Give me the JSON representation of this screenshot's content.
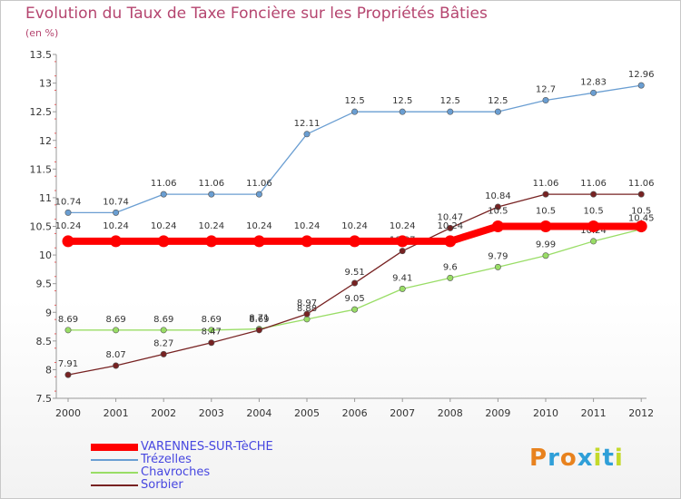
{
  "title": "Evolution du Taux de Taxe Foncière sur les Propriétés Bâties",
  "subtitle": "(en %)",
  "logo": {
    "text": "Proxiti",
    "colors": [
      "#e8821e",
      "#2f9fd8",
      "#e8821e",
      "#2f9fd8",
      "#c4d92a",
      "#2f9fd8",
      "#c4d92a"
    ]
  },
  "chart_data": {
    "type": "line",
    "title": "Evolution du Taux de Taxe Foncière sur les Propriétés Bâties",
    "ylabel": "(en %)",
    "xlabel": "",
    "x": [
      "2000",
      "2001",
      "2002",
      "2003",
      "2004",
      "2005",
      "2006",
      "2007",
      "2008",
      "2009",
      "2010",
      "2011",
      "2012"
    ],
    "ylim": [
      7.5,
      13.5
    ],
    "yticks": [
      "7.5",
      "8",
      "8.5",
      "9",
      "9.5",
      "10",
      "10.5",
      "11",
      "11.5",
      "12",
      "12.5",
      "13",
      "13.5"
    ],
    "grid": false,
    "legend_position": "bottom-left",
    "series": [
      {
        "name": "VARENNES-SUR-TèCHE",
        "color": "#ff0000",
        "values": [
          10.24,
          10.24,
          10.24,
          10.24,
          10.24,
          10.24,
          10.24,
          10.24,
          10.24,
          10.5,
          10.5,
          10.5,
          10.5
        ],
        "labels": [
          "10.24",
          "10.24",
          "10.24",
          "10.24",
          "10.24",
          "10.24",
          "10.24",
          "10.24",
          "10.24",
          "10.5",
          "10.5",
          "10.5",
          "10.5"
        ]
      },
      {
        "name": "Trézelles",
        "color": "#6a9ed2",
        "values": [
          10.74,
          10.74,
          11.06,
          11.06,
          11.06,
          12.11,
          12.5,
          12.5,
          12.5,
          12.5,
          12.7,
          12.83,
          12.96
        ],
        "labels": [
          "10.74",
          "10.74",
          "11.06",
          "11.06",
          "11.06",
          "12.11",
          "12.5",
          "12.5",
          "12.5",
          "12.5",
          "12.7",
          "12.83",
          "12.96"
        ]
      },
      {
        "name": "Chavroches",
        "color": "#99dd66",
        "values": [
          8.69,
          8.69,
          8.69,
          8.69,
          8.71,
          8.88,
          9.05,
          9.41,
          9.6,
          9.79,
          9.99,
          10.24,
          10.45
        ],
        "labels": [
          "8.69",
          "8.69",
          "8.69",
          "8.69",
          "8.71",
          "8.88",
          "9.05",
          "9.41",
          "9.6",
          "9.79",
          "9.99",
          "10.24",
          "10.45"
        ]
      },
      {
        "name": "Sorbier",
        "color": "#772222",
        "values": [
          7.91,
          8.07,
          8.27,
          8.47,
          8.69,
          8.97,
          9.51,
          10.07,
          10.47,
          10.84,
          11.06,
          11.06,
          11.06
        ],
        "labels": [
          "7.91",
          "8.07",
          "8.27",
          "8.47",
          "8.69",
          "8.97",
          "9.51",
          "10.07",
          "10.47",
          "10.84",
          "11.06",
          "11.06",
          "11.06"
        ]
      }
    ]
  }
}
